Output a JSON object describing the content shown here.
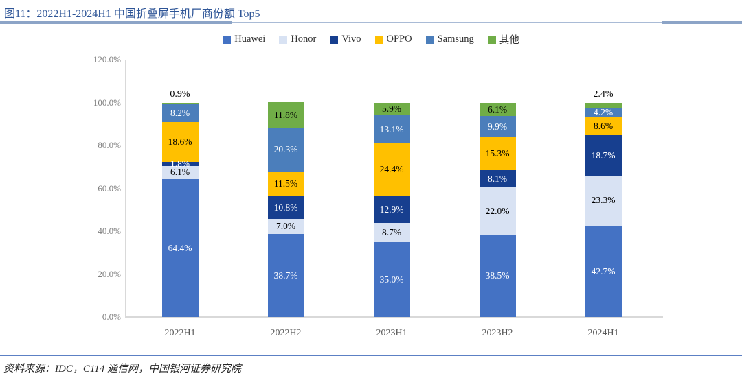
{
  "figure": {
    "title": "图11：2022H1-2024H1 中国折叠屏手机厂商份额 Top5",
    "source": "资料来源：IDC，C114 通信网，中国银河证券研究院"
  },
  "chart_data": {
    "type": "bar",
    "stacked": true,
    "title": "2022H1-2024H1 中国折叠屏手机厂商份额 Top5",
    "xlabel": "",
    "ylabel": "",
    "ylim": [
      0,
      120
    ],
    "grid": false,
    "legend_position": "top",
    "categories": [
      "2022H1",
      "2022H2",
      "2023H1",
      "2023H2",
      "2024H1"
    ],
    "yticks": [
      "0.0%",
      "20.0%",
      "40.0%",
      "60.0%",
      "80.0%",
      "100.0%",
      "120.0%"
    ],
    "series": [
      {
        "name": "Huawei",
        "color": "#4472C4",
        "label_color": "#FFFFFF",
        "values": [
          64.4,
          38.7,
          35.0,
          38.5,
          42.7
        ]
      },
      {
        "name": "Honor",
        "color": "#D8E2F3",
        "label_color": "#000000",
        "values": [
          6.1,
          7.0,
          8.7,
          22.0,
          23.3
        ]
      },
      {
        "name": "Vivo",
        "color": "#173F8F",
        "label_color": "#FFFFFF",
        "values": [
          1.8,
          10.8,
          12.9,
          8.1,
          18.7
        ]
      },
      {
        "name": "OPPO",
        "color": "#FFC000",
        "label_color": "#000000",
        "values": [
          18.6,
          11.5,
          24.4,
          15.3,
          8.6
        ]
      },
      {
        "name": "Samsung",
        "color": "#4B7EBB",
        "label_color": "#FFFFFF",
        "values": [
          8.2,
          20.3,
          13.1,
          9.9,
          4.2
        ]
      },
      {
        "name": "其他",
        "color": "#70AD47",
        "label_color": "#000000",
        "values": [
          0.9,
          11.8,
          5.9,
          6.1,
          2.4
        ]
      }
    ],
    "outside_labels": [
      {
        "category": "2022H1",
        "series": "其他",
        "text": "0.9%"
      },
      {
        "category": "2024H1",
        "series": "其他",
        "text": "2.4%"
      }
    ]
  }
}
